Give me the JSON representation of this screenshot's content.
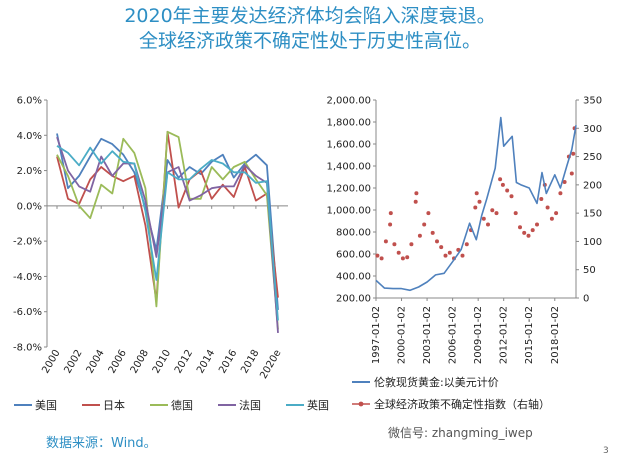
{
  "title_line1": "2020年主要发达经济体均会陷入深度衰退。",
  "title_line2": "全球经济政策不确定性处于历史性高位。",
  "source": "数据来源：Wind。",
  "watermark": "微信号: zhangming_iwep",
  "page_number": "3",
  "chart_data": [
    {
      "type": "line",
      "ylim": [
        -8,
        6
      ],
      "yticks": [
        "6.0%",
        "4.0%",
        "2.0%",
        "0.0%",
        "-2.0%",
        "-4.0%",
        "-6.0%",
        "-8.0%"
      ],
      "x": [
        2000,
        2001,
        2002,
        2003,
        2004,
        2005,
        2006,
        2007,
        2008,
        2009,
        2010,
        2011,
        2012,
        2013,
        2014,
        2015,
        2016,
        2017,
        2018,
        2019,
        2020
      ],
      "xticklabels": [
        "2000",
        "2002",
        "2004",
        "2006",
        "2008",
        "2010",
        "2012",
        "2014",
        "2016",
        "2018",
        "2020e"
      ],
      "grid": false,
      "legend_position": "bottom",
      "series": [
        {
          "name": "美国",
          "color": "#4f81bd",
          "values": [
            4.1,
            1.0,
            1.7,
            2.8,
            3.8,
            3.5,
            2.9,
            1.9,
            -0.1,
            -2.5,
            2.6,
            1.6,
            2.2,
            1.8,
            2.5,
            2.9,
            1.6,
            2.4,
            2.9,
            2.3,
            -5.9
          ]
        },
        {
          "name": "日本",
          "color": "#c0504d",
          "values": [
            2.8,
            0.4,
            0.1,
            1.5,
            2.2,
            1.7,
            1.4,
            1.7,
            -1.1,
            -5.4,
            4.2,
            -0.1,
            1.5,
            2.0,
            0.4,
            1.2,
            0.5,
            2.2,
            0.3,
            0.7,
            -5.2
          ]
        },
        {
          "name": "德国",
          "color": "#9bbb59",
          "values": [
            2.9,
            1.7,
            0.0,
            -0.7,
            1.2,
            0.7,
            3.8,
            3.0,
            1.0,
            -5.7,
            4.2,
            3.9,
            0.4,
            0.4,
            2.2,
            1.5,
            2.2,
            2.5,
            1.5,
            0.6,
            -7.0
          ]
        },
        {
          "name": "法国",
          "color": "#8064a2",
          "values": [
            3.9,
            2.0,
            1.1,
            0.8,
            2.8,
            1.7,
            2.4,
            2.4,
            0.3,
            -2.9,
            1.9,
            2.2,
            0.3,
            0.6,
            1.0,
            1.1,
            1.1,
            2.3,
            1.7,
            1.3,
            -7.2
          ]
        },
        {
          "name": "英国",
          "color": "#4bacc6",
          "values": [
            3.4,
            3.0,
            2.3,
            3.3,
            2.4,
            3.1,
            2.5,
            2.4,
            -0.3,
            -4.2,
            1.9,
            1.5,
            1.5,
            2.1,
            2.6,
            2.4,
            1.9,
            1.9,
            1.3,
            1.4,
            -6.5
          ]
        }
      ]
    },
    {
      "type": "line",
      "ylim": [
        200,
        2000
      ],
      "y2lim": [
        0,
        350
      ],
      "yticks": [
        "2,000.00",
        "1,800.00",
        "1,600.00",
        "1,400.00",
        "1,200.00",
        "1,000.00",
        "800.00",
        "600.00",
        "400.00",
        "200.00"
      ],
      "y2ticks": [
        "350",
        "300",
        "250",
        "200",
        "150",
        "100",
        "50",
        "0"
      ],
      "xticklabels": [
        "1997-01-02",
        "2000-01-02",
        "2003-01-02",
        "2006-01-02",
        "2009-01-02",
        "2012-01-02",
        "2015-01-02",
        "2018-01-02"
      ],
      "x_range": [
        "1997-01-02",
        "2020-06-30"
      ],
      "grid": false,
      "legend_position": "bottom",
      "series": [
        {
          "name": "伦敦现货黄金:以美元计价",
          "color": "#4f81bd",
          "axis": "left",
          "x": [
            "1997-01-02",
            "1998-01-02",
            "1999-01-02",
            "2000-01-02",
            "2001-01-02",
            "2002-01-02",
            "2003-01-02",
            "2004-01-02",
            "2005-01-02",
            "2006-01-02",
            "2007-01-02",
            "2008-01-02",
            "2008-10-15",
            "2009-06-01",
            "2010-01-02",
            "2011-01-02",
            "2011-09-01",
            "2012-01-02",
            "2013-01-02",
            "2013-07-01",
            "2014-01-02",
            "2015-01-02",
            "2015-12-01",
            "2016-07-01",
            "2017-01-02",
            "2018-01-02",
            "2018-09-01",
            "2019-06-01",
            "2020-01-02",
            "2020-06-30"
          ],
          "values": [
            360,
            290,
            285,
            285,
            270,
            300,
            345,
            410,
            425,
            530,
            640,
            880,
            730,
            950,
            1100,
            1380,
            1840,
            1580,
            1670,
            1250,
            1230,
            1200,
            1060,
            1340,
            1150,
            1320,
            1200,
            1400,
            1550,
            1770
          ]
        },
        {
          "name": "全球经济政策不确定性指数（右轴）",
          "color": "#c0504d",
          "axis": "right",
          "marker": "dot",
          "x": [
            "1997-03-01",
            "1997-09-01",
            "1998-03-01",
            "1998-09-01",
            "1998-10-01",
            "1999-03-01",
            "1999-09-01",
            "2000-03-01",
            "2000-09-01",
            "2001-03-01",
            "2001-09-01",
            "2001-10-01",
            "2002-03-01",
            "2002-09-01",
            "2003-03-01",
            "2003-09-01",
            "2004-03-01",
            "2004-09-01",
            "2005-03-01",
            "2005-09-01",
            "2006-03-01",
            "2006-09-01",
            "2007-03-01",
            "2007-09-01",
            "2008-03-01",
            "2008-09-01",
            "2008-11-01",
            "2009-03-01",
            "2009-09-01",
            "2010-03-01",
            "2010-09-01",
            "2011-03-01",
            "2011-08-01",
            "2011-12-01",
            "2012-06-01",
            "2012-12-01",
            "2013-06-01",
            "2013-12-01",
            "2014-06-01",
            "2014-12-01",
            "2015-06-01",
            "2015-12-01",
            "2016-06-01",
            "2016-11-01",
            "2017-03-01",
            "2017-09-01",
            "2018-03-01",
            "2018-09-01",
            "2019-03-01",
            "2019-09-01",
            "2020-01-01",
            "2020-03-01",
            "2020-05-01"
          ],
          "values": [
            75,
            70,
            100,
            130,
            150,
            95,
            80,
            70,
            72,
            95,
            170,
            185,
            110,
            130,
            150,
            115,
            100,
            90,
            75,
            80,
            70,
            85,
            75,
            95,
            120,
            160,
            185,
            170,
            140,
            130,
            155,
            150,
            210,
            200,
            190,
            180,
            150,
            125,
            115,
            110,
            120,
            130,
            175,
            200,
            160,
            140,
            150,
            185,
            205,
            250,
            220,
            255,
            300
          ]
        }
      ]
    }
  ]
}
